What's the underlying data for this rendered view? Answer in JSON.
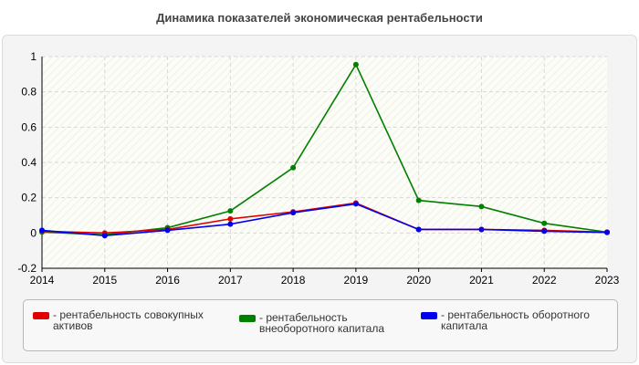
{
  "chart_data": {
    "type": "line",
    "title": "Динамика показателей экономическая рентабельности",
    "x": [
      "2014",
      "2015",
      "2016",
      "2017",
      "2018",
      "2019",
      "2020",
      "2021",
      "2022",
      "2023"
    ],
    "yticks": [
      "-0.2",
      "0",
      "0.2",
      "0.4",
      "0.6",
      "0.8",
      "1"
    ],
    "ylim": [
      -0.2,
      1
    ],
    "grid": true,
    "legend_position": "bottom",
    "series": [
      {
        "name": "- рентабельность совокупных активов",
        "color": "#e00000",
        "values": [
          0.01,
          0.0,
          0.02,
          0.08,
          0.12,
          0.17,
          0.02,
          0.02,
          0.015,
          0.005
        ]
      },
      {
        "name": "- рентабельность внеоборотного капитала",
        "color": "#008000",
        "values": [
          0.005,
          -0.01,
          0.03,
          0.125,
          0.37,
          0.955,
          0.185,
          0.15,
          0.055,
          0.005
        ]
      },
      {
        "name": "- рентабельность оборотного капитала",
        "color": "#0000ee",
        "values": [
          0.015,
          -0.015,
          0.015,
          0.05,
          0.115,
          0.165,
          0.02,
          0.02,
          0.01,
          0.003
        ]
      }
    ]
  }
}
